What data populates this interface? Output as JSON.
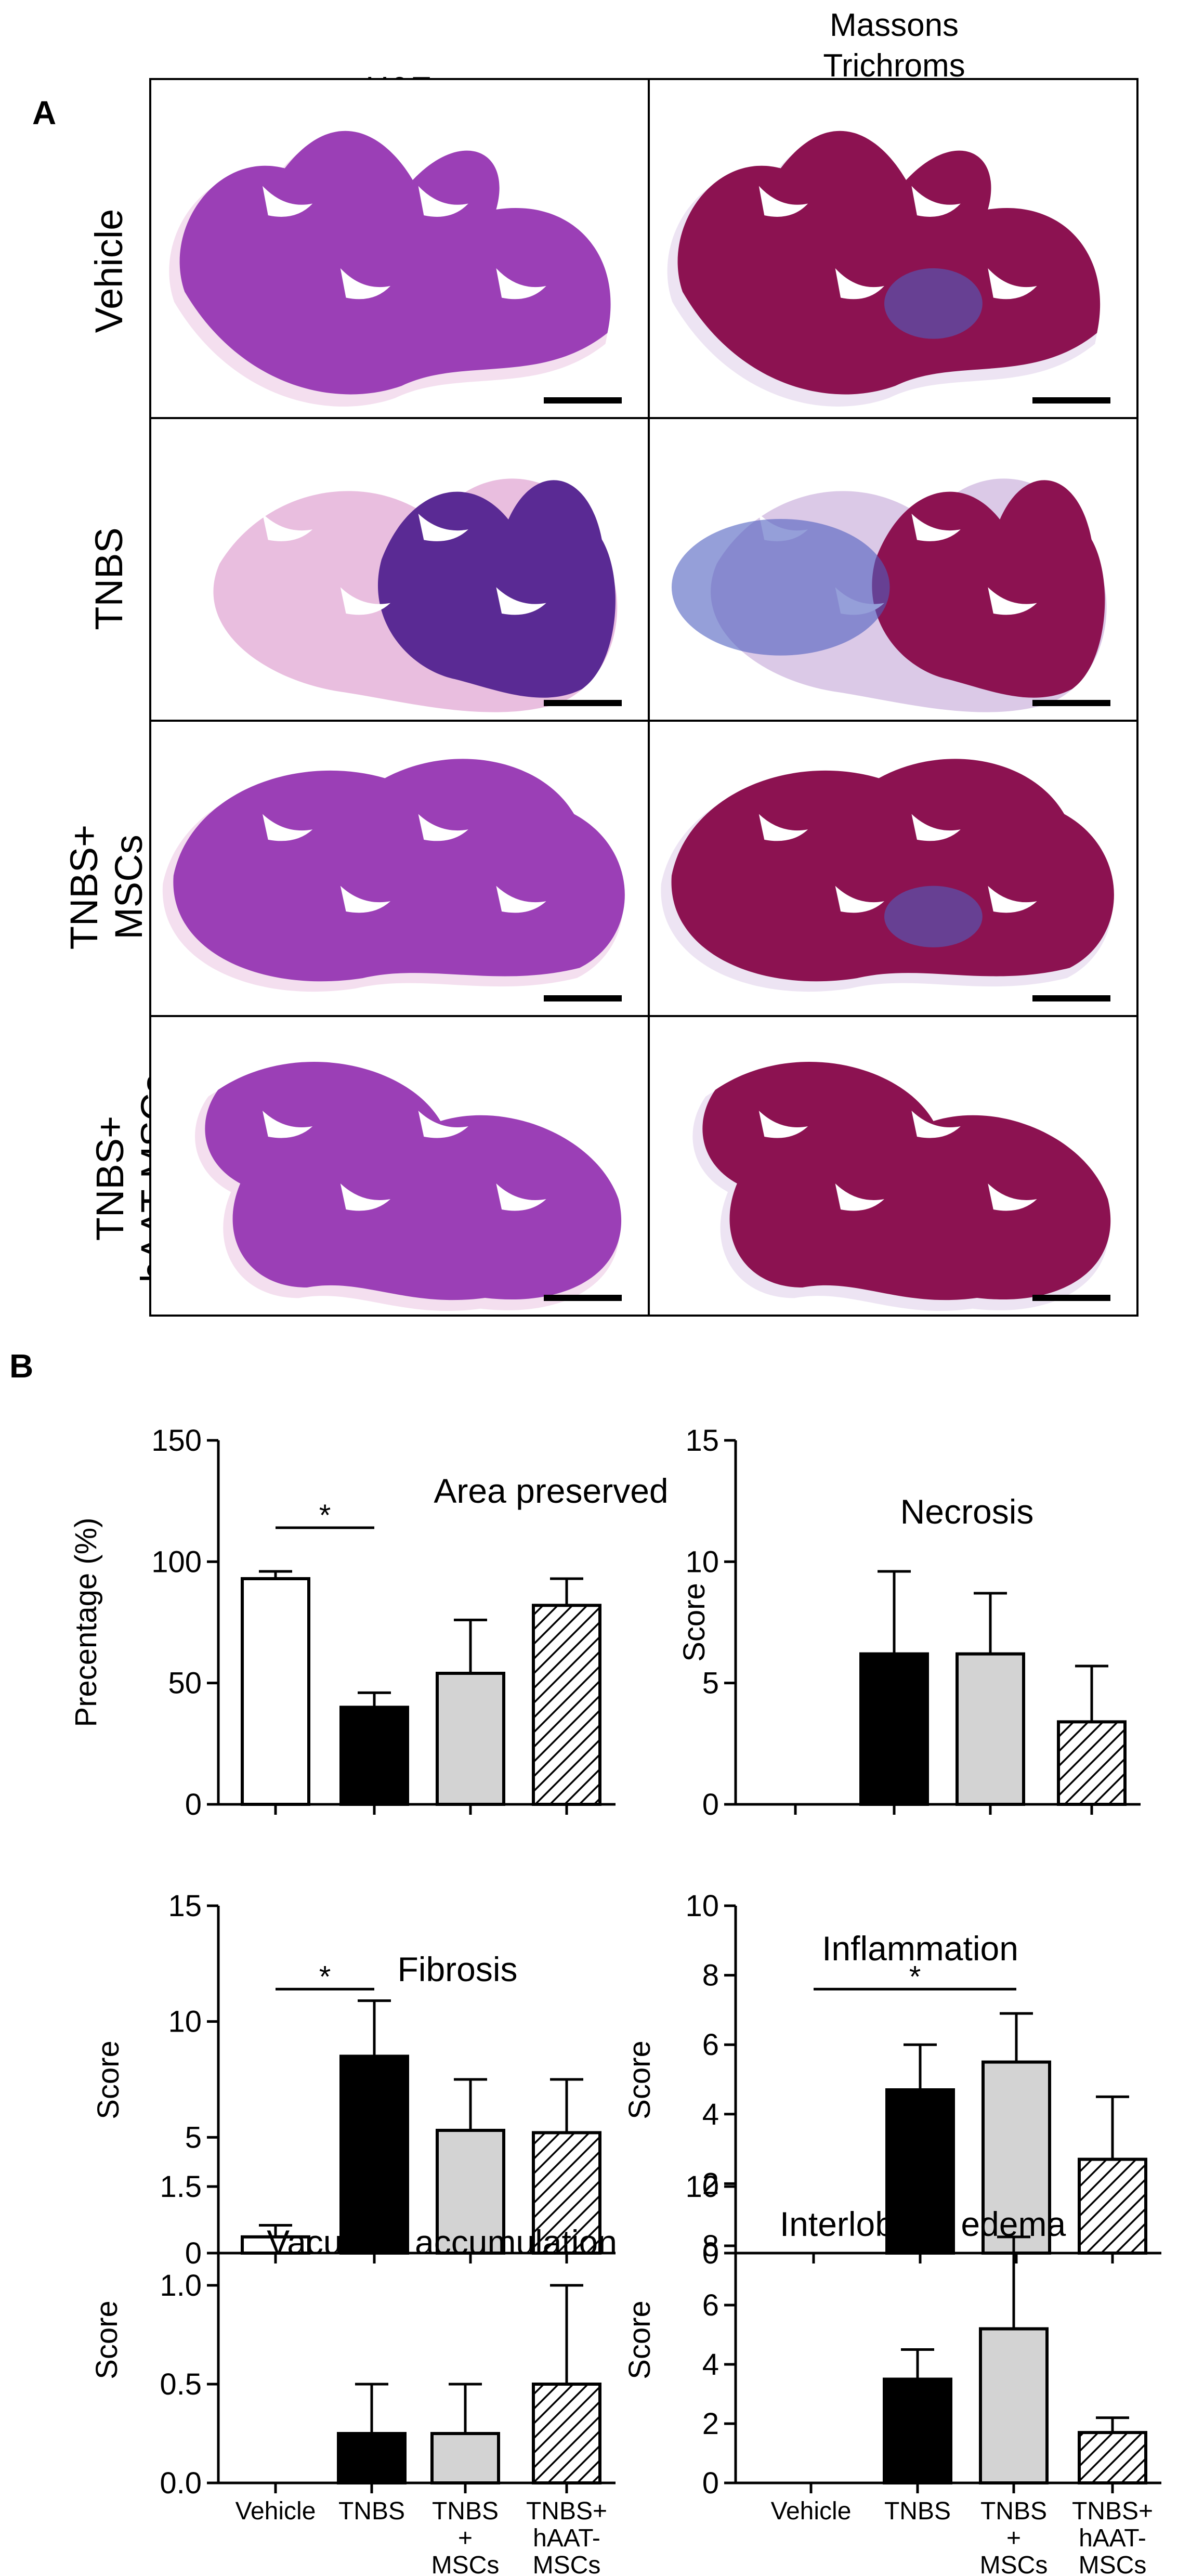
{
  "panel_a": {
    "letter": "A",
    "columns": [
      "H&E",
      "Massons Trichroms"
    ],
    "column_lines": [
      [
        "H&E"
      ],
      [
        "Massons",
        "Trichroms"
      ]
    ],
    "rows": [
      {
        "lines": [
          "Vehicle"
        ]
      },
      {
        "lines": [
          "TNBS"
        ]
      },
      {
        "lines": [
          "TNBS+",
          "MSCs"
        ]
      },
      {
        "lines": [
          "TNBS+",
          "hAAT-MSCs"
        ]
      }
    ],
    "colors": {
      "he_tissue": "#9b3fb6",
      "he_dark": "#5a2a94",
      "he_pale": "#e7b7dc",
      "mt_tissue": "#8c1251",
      "mt_blue": "#4f5fbf",
      "mt_pale": "#d7c3e4"
    }
  },
  "panel_b": {
    "letter": "B",
    "groups": [
      "Vehicle",
      "TNBS",
      "TNBS + MSCs",
      "TNBS+ hAAT-MSCs"
    ],
    "group_fills": [
      "white",
      "black",
      "lightgray",
      "hatched"
    ],
    "x_tick_lines": [
      [
        "Vehicle"
      ],
      [
        "TNBS"
      ],
      [
        "TNBS",
        "+",
        "MSCs"
      ],
      [
        "TNBS+",
        "hAAT-",
        "MSCs"
      ]
    ]
  },
  "chart_data": [
    {
      "type": "bar",
      "title": "Area preserved",
      "ylabel": "Precentage (%)",
      "ylim": [
        0,
        150
      ],
      "yticks": [
        0,
        50,
        100,
        150
      ],
      "categories": [
        "Vehicle",
        "TNBS",
        "TNBS + MSCs",
        "TNBS+ hAAT-MSCs"
      ],
      "values": [
        93,
        40,
        54,
        82
      ],
      "errors": [
        3,
        6,
        22,
        11
      ],
      "significance": [
        {
          "from": 0,
          "to": 1,
          "label": "*"
        }
      ]
    },
    {
      "type": "bar",
      "title": "Necrosis",
      "ylabel": "Score",
      "ylim": [
        0,
        15
      ],
      "yticks": [
        0,
        5,
        10,
        15
      ],
      "categories": [
        "Vehicle",
        "TNBS",
        "TNBS + MSCs",
        "TNBS+ hAAT-MSCs"
      ],
      "values": [
        0,
        6.2,
        6.2,
        3.4
      ],
      "errors": [
        0,
        3.4,
        2.5,
        2.3
      ],
      "significance": []
    },
    {
      "type": "bar",
      "title": "Fibrosis",
      "ylabel": "Score",
      "ylim": [
        0,
        15
      ],
      "yticks": [
        0,
        5,
        10,
        15
      ],
      "categories": [
        "Vehicle",
        "TNBS",
        "TNBS + MSCs",
        "TNBS+ hAAT-MSCs"
      ],
      "values": [
        0.7,
        8.5,
        5.3,
        5.2
      ],
      "errors": [
        0.5,
        2.4,
        2.2,
        2.3
      ],
      "significance": [
        {
          "from": 0,
          "to": 1,
          "label": "*"
        }
      ]
    },
    {
      "type": "bar",
      "title": "Inflammation",
      "ylabel": "Score",
      "ylim": [
        0,
        10
      ],
      "yticks": [
        0,
        2,
        4,
        6,
        8,
        10
      ],
      "categories": [
        "Vehicle",
        "TNBS",
        "TNBS + MSCs",
        "TNBS+ hAAT-MSCs"
      ],
      "values": [
        0,
        4.7,
        5.5,
        2.7
      ],
      "errors": [
        0,
        1.3,
        1.4,
        1.8
      ],
      "significance": [
        {
          "from": 0,
          "to": 2,
          "label": "*"
        }
      ]
    },
    {
      "type": "bar",
      "title": "Vacuoles accumulation",
      "ylabel": "Score",
      "ylim": [
        0,
        1.5
      ],
      "yticks": [
        "0.0",
        "0.5",
        "1.0",
        "1.5"
      ],
      "categories": [
        "Vehicle",
        "TNBS",
        "TNBS + MSCs",
        "TNBS+ hAAT-MSCs"
      ],
      "values": [
        0,
        0.25,
        0.25,
        0.5
      ],
      "errors": [
        0,
        0.25,
        0.25,
        0.5
      ],
      "significance": []
    },
    {
      "type": "bar",
      "title": "Interlobular edema",
      "ylabel": "Score",
      "ylim": [
        0,
        10
      ],
      "yticks": [
        0,
        2,
        4,
        6,
        8,
        10
      ],
      "categories": [
        "Vehicle",
        "TNBS",
        "TNBS + MSCs",
        "TNBS+ hAAT-MSCs"
      ],
      "values": [
        0,
        3.5,
        5.2,
        1.7
      ],
      "errors": [
        0,
        1.0,
        3.1,
        0.5
      ],
      "significance": []
    }
  ]
}
